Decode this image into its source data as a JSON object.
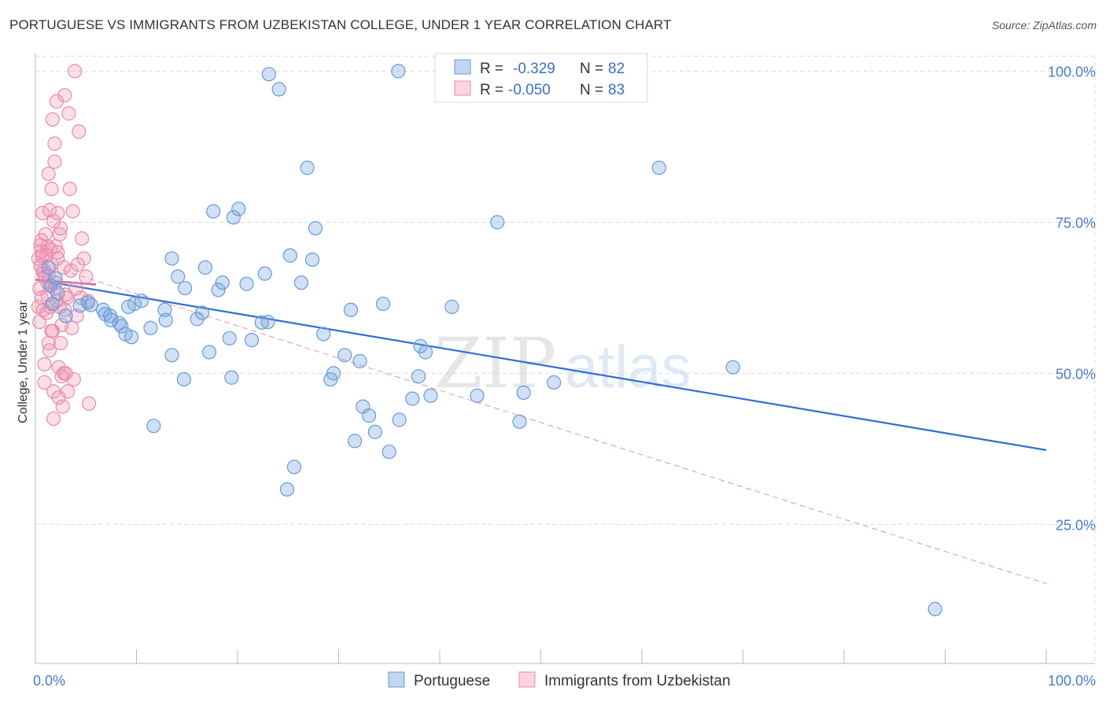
{
  "title": "PORTUGUESE VS IMMIGRANTS FROM UZBEKISTAN COLLEGE, UNDER 1 YEAR CORRELATION CHART",
  "source": "Source: ZipAtlas.com",
  "watermark": {
    "zip": "ZIP",
    "atlas": "atlas"
  },
  "colors": {
    "portuguese_fill": "rgba(120,165,225,0.35)",
    "portuguese_stroke": "#6a9ad6",
    "portuguese_line": "#2f6fd0",
    "uzbek_fill": "rgba(240,150,180,0.30)",
    "uzbek_stroke": "#e98aab",
    "uzbek_line": "#e0608a",
    "grid": "#dcdcdc",
    "tick_text": "#4a7cc9"
  },
  "legend": {
    "r_label": "R =",
    "n_label": "N =",
    "rows": [
      {
        "r": "-0.329",
        "n": "82"
      },
      {
        "r": "-0.050",
        "n": "83"
      }
    ]
  },
  "chart_data": {
    "type": "scatter",
    "title": "PORTUGUESE VS IMMIGRANTS FROM UZBEKISTAN COLLEGE, UNDER 1 YEAR CORRELATION CHART",
    "xlabel": "",
    "ylabel": "College, Under 1 year",
    "xlim": [
      0,
      100
    ],
    "ylim": [
      2,
      102
    ],
    "x_tick_labels": [
      "0.0%",
      "100.0%"
    ],
    "y_ticks": [
      25,
      50,
      75,
      100
    ],
    "y_tick_labels": [
      "25.0%",
      "50.0%",
      "75.0%",
      "100.0%"
    ],
    "grid": true,
    "legend_placement": "top-center",
    "series": [
      {
        "name": "Portuguese",
        "r": -0.329,
        "n": 82,
        "trend": {
          "x": [
            0,
            100
          ],
          "y": [
            65.5,
            37.3
          ]
        },
        "points": [
          [
            1.3,
            67.5
          ],
          [
            1.5,
            64.5
          ],
          [
            1.7,
            61.5
          ],
          [
            2.0,
            65.7
          ],
          [
            2.2,
            63.3
          ],
          [
            3.0,
            59.5
          ],
          [
            4.4,
            61.2
          ],
          [
            5.2,
            61.7
          ],
          [
            5.5,
            61.3
          ],
          [
            6.7,
            60.5
          ],
          [
            6.9,
            59.8
          ],
          [
            7.4,
            59.5
          ],
          [
            7.5,
            58.8
          ],
          [
            8.3,
            58.3
          ],
          [
            8.5,
            57.8
          ],
          [
            8.9,
            56.5
          ],
          [
            9.5,
            56.0
          ],
          [
            9.8,
            61.5
          ],
          [
            10.5,
            62.0
          ],
          [
            11.4,
            57.5
          ],
          [
            11.7,
            41.3
          ],
          [
            12.8,
            60.5
          ],
          [
            12.9,
            58.8
          ],
          [
            13.5,
            53.0
          ],
          [
            14.1,
            66.0
          ],
          [
            14.8,
            64.1
          ],
          [
            14.7,
            49.0
          ],
          [
            16.0,
            59.0
          ],
          [
            16.5,
            60.0
          ],
          [
            16.8,
            67.5
          ],
          [
            17.2,
            53.5
          ],
          [
            17.6,
            76.8
          ],
          [
            18.1,
            63.8
          ],
          [
            18.5,
            65.0
          ],
          [
            19.2,
            55.8
          ],
          [
            19.4,
            49.3
          ],
          [
            19.6,
            75.8
          ],
          [
            20.1,
            77.2
          ],
          [
            20.9,
            64.8
          ],
          [
            21.4,
            55.5
          ],
          [
            22.7,
            66.5
          ],
          [
            23.0,
            58.5
          ],
          [
            23.1,
            99.5
          ],
          [
            24.1,
            97.0
          ],
          [
            24.9,
            30.8
          ],
          [
            25.2,
            69.5
          ],
          [
            25.6,
            34.5
          ],
          [
            26.3,
            65.0
          ],
          [
            26.9,
            84.0
          ],
          [
            27.4,
            68.8
          ],
          [
            27.7,
            74.0
          ],
          [
            28.5,
            56.5
          ],
          [
            29.2,
            49.0
          ],
          [
            29.5,
            50.0
          ],
          [
            30.6,
            53.0
          ],
          [
            31.2,
            60.5
          ],
          [
            31.6,
            38.8
          ],
          [
            32.1,
            52.0
          ],
          [
            32.4,
            44.5
          ],
          [
            33.0,
            43.0
          ],
          [
            33.6,
            40.3
          ],
          [
            34.4,
            61.5
          ],
          [
            35.0,
            37.0
          ],
          [
            36.0,
            42.3
          ],
          [
            37.3,
            45.8
          ],
          [
            37.9,
            49.5
          ],
          [
            38.1,
            54.5
          ],
          [
            38.6,
            53.5
          ],
          [
            39.1,
            46.3
          ],
          [
            41.2,
            61.0
          ],
          [
            43.7,
            46.3
          ],
          [
            45.7,
            75.0
          ],
          [
            47.9,
            42.0
          ],
          [
            48.3,
            46.8
          ],
          [
            51.3,
            48.5
          ],
          [
            61.7,
            84.0
          ],
          [
            69.0,
            51.0
          ],
          [
            89.0,
            11.0
          ],
          [
            35.9,
            100.0
          ],
          [
            13.5,
            69.0
          ],
          [
            9.2,
            61.0
          ],
          [
            22.4,
            58.4
          ]
        ]
      },
      {
        "name": "Immigrants from Uzbekistan",
        "r": -0.05,
        "n": 83,
        "trend_solid": {
          "x": [
            0,
            6
          ],
          "y": [
            65.5,
            64.7
          ]
        },
        "trend_dashed": {
          "x": [
            0,
            100
          ],
          "y": [
            68.5,
            15.2
          ]
        },
        "points": [
          [
            0.3,
            61.0
          ],
          [
            0.4,
            64.0
          ],
          [
            0.5,
            67.8
          ],
          [
            0.6,
            72.0
          ],
          [
            0.6,
            70.2
          ],
          [
            0.7,
            76.5
          ],
          [
            0.8,
            66.5
          ],
          [
            0.8,
            60.5
          ],
          [
            0.9,
            51.5
          ],
          [
            0.9,
            48.5
          ],
          [
            1.0,
            73.0
          ],
          [
            1.1,
            69.5
          ],
          [
            1.2,
            63.0
          ],
          [
            1.2,
            71.0
          ],
          [
            1.3,
            83.0
          ],
          [
            1.3,
            66.2
          ],
          [
            1.4,
            77.0
          ],
          [
            1.4,
            53.8
          ],
          [
            1.5,
            61.0
          ],
          [
            1.5,
            64.5
          ],
          [
            1.6,
            80.5
          ],
          [
            1.6,
            68.0
          ],
          [
            1.7,
            92.0
          ],
          [
            1.7,
            57.0
          ],
          [
            1.8,
            75.2
          ],
          [
            1.8,
            47.0
          ],
          [
            1.8,
            42.5
          ],
          [
            1.9,
            88.0
          ],
          [
            1.9,
            85.0
          ],
          [
            2.0,
            71.0
          ],
          [
            2.0,
            65.0
          ],
          [
            2.1,
            62.0
          ],
          [
            2.1,
            95.0
          ],
          [
            2.2,
            76.5
          ],
          [
            2.2,
            69.0
          ],
          [
            2.3,
            46.0
          ],
          [
            2.3,
            51.0
          ],
          [
            2.4,
            73.0
          ],
          [
            2.5,
            74.0
          ],
          [
            2.5,
            55.0
          ],
          [
            2.6,
            49.5
          ],
          [
            2.6,
            58.0
          ],
          [
            2.7,
            44.5
          ],
          [
            2.8,
            50.0
          ],
          [
            2.9,
            96.0
          ],
          [
            2.9,
            60.5
          ],
          [
            3.0,
            63.0
          ],
          [
            3.0,
            50.0
          ],
          [
            3.1,
            62.5
          ],
          [
            3.2,
            47.0
          ],
          [
            3.3,
            93.0
          ],
          [
            3.4,
            80.5
          ],
          [
            3.5,
            67.0
          ],
          [
            3.6,
            57.5
          ],
          [
            3.7,
            76.8
          ],
          [
            3.8,
            49.0
          ],
          [
            3.9,
            100.0
          ],
          [
            4.0,
            64.0
          ],
          [
            4.1,
            59.5
          ],
          [
            4.2,
            68.0
          ],
          [
            4.3,
            90.0
          ],
          [
            4.5,
            62.5
          ],
          [
            4.6,
            72.3
          ],
          [
            4.8,
            69.0
          ],
          [
            5.0,
            66.0
          ],
          [
            5.2,
            62.0
          ],
          [
            5.3,
            45.0
          ],
          [
            0.5,
            71.2
          ],
          [
            0.7,
            69.5
          ],
          [
            1.0,
            66.0
          ],
          [
            1.1,
            60.0
          ],
          [
            1.3,
            55.0
          ],
          [
            1.5,
            70.5
          ],
          [
            0.4,
            58.5
          ],
          [
            0.6,
            62.5
          ],
          [
            0.8,
            67.0
          ],
          [
            1.2,
            65.0
          ],
          [
            1.9,
            64.0
          ],
          [
            2.4,
            61.0
          ],
          [
            2.8,
            67.5
          ],
          [
            0.3,
            69.0
          ],
          [
            1.6,
            57.0
          ],
          [
            2.2,
            70.0
          ]
        ]
      }
    ]
  }
}
